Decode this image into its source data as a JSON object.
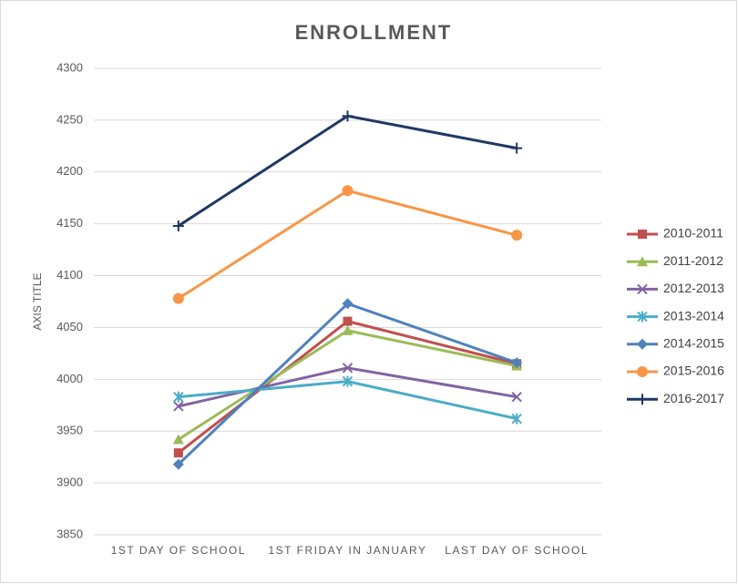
{
  "chart_data": {
    "type": "line",
    "title": "ENROLLMENT",
    "y_label": "AXIS TITLE",
    "categories": [
      "1ST DAY OF SCHOOL",
      "1ST FRIDAY IN JANUARY",
      "LAST DAY OF SCHOOL"
    ],
    "series": [
      {
        "name": "2010-2011",
        "color": "#c0504d",
        "marker": "square",
        "values": [
          3929,
          4056,
          4015
        ]
      },
      {
        "name": "2011-2012",
        "color": "#9bbb59",
        "marker": "triangle",
        "values": [
          3942,
          4047,
          4013
        ]
      },
      {
        "name": "2012-2013",
        "color": "#8064a2",
        "marker": "x",
        "values": [
          3974,
          4011,
          3983
        ]
      },
      {
        "name": "2013-2014",
        "color": "#4bacc6",
        "marker": "star",
        "values": [
          3983,
          3998,
          3962
        ]
      },
      {
        "name": "2014-2015",
        "color": "#4f81bd",
        "marker": "diamond",
        "values": [
          3918,
          4073,
          4016
        ]
      },
      {
        "name": "2015-2016",
        "color": "#f79646",
        "marker": "circle",
        "values": [
          4078,
          4182,
          4139
        ]
      },
      {
        "name": "2016-2017",
        "color": "#1f3864",
        "marker": "plus",
        "values": [
          4148,
          4254,
          4223
        ]
      }
    ],
    "ylim": [
      3850,
      4300
    ],
    "yticks": [
      3850,
      3900,
      3950,
      4000,
      4050,
      4100,
      4150,
      4200,
      4250,
      4300
    ],
    "grid": true,
    "legend": "right"
  }
}
